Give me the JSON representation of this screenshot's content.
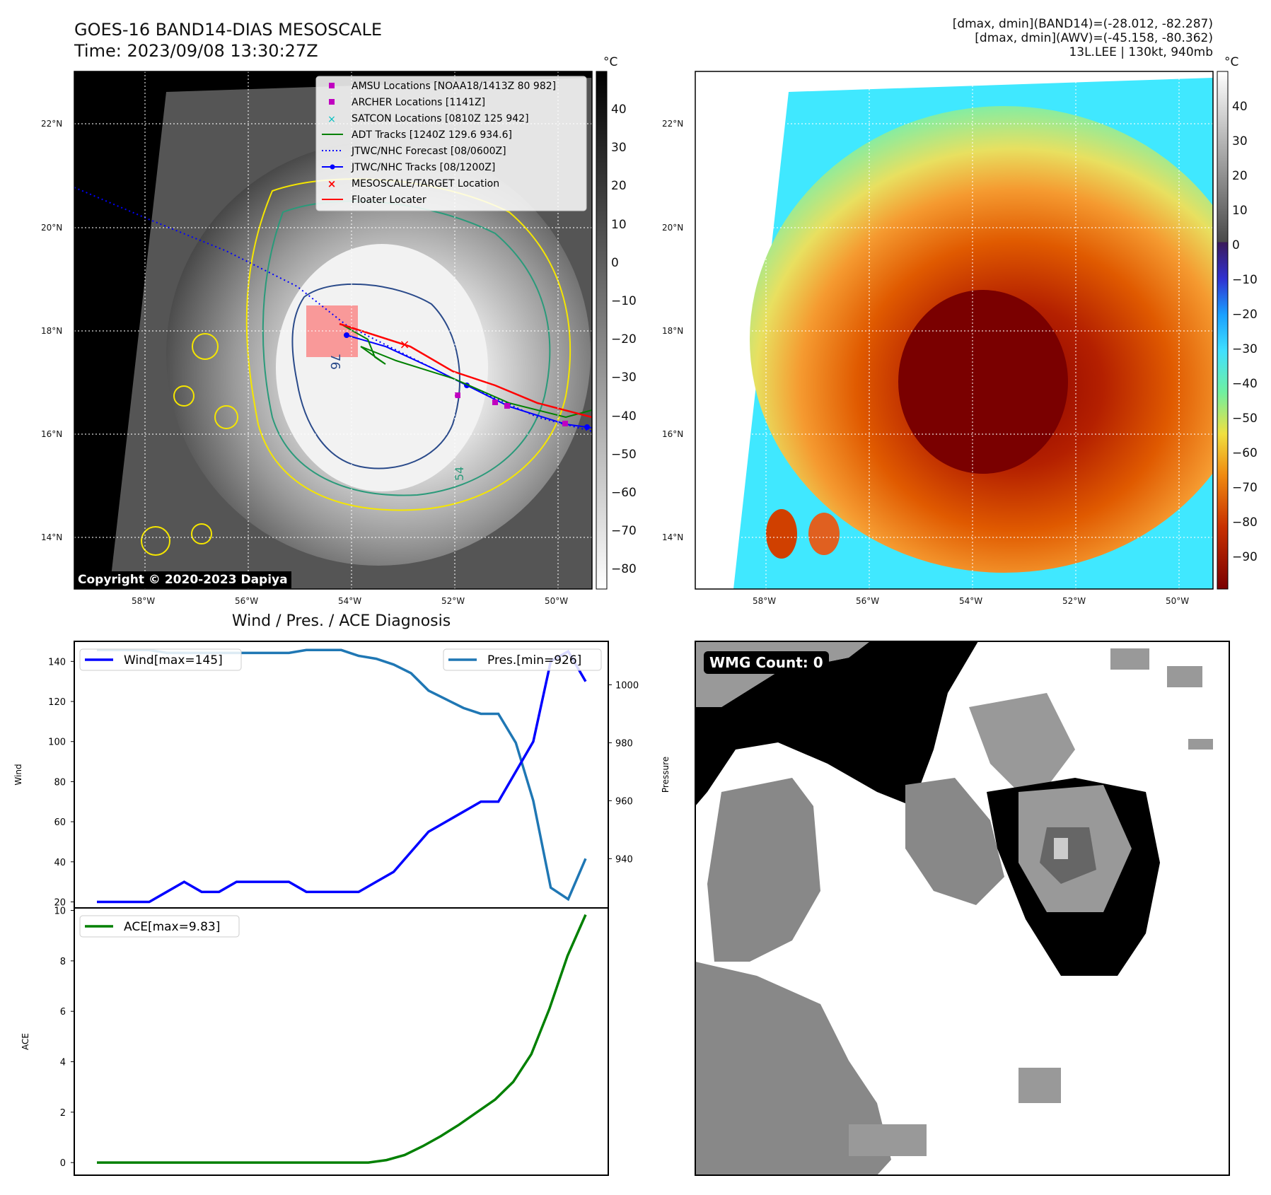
{
  "header": {
    "title_line1": "GOES-16 BAND14-DIAS MESOSCALE",
    "title_line2": "Time: 2023/09/08 13:30:27Z",
    "info_line1": "[dmax, dmin](BAND14)=(-28.012, -82.287)",
    "info_line2": "[dmax, dmin](AWV)=(-45.158, -80.362)",
    "info_line3": "13L.LEE | 130kt, 940mb"
  },
  "map": {
    "lat_labels": [
      "22°N",
      "20°N",
      "18°N",
      "16°N",
      "14°N"
    ],
    "lon_labels": [
      "58°W",
      "56°W",
      "54°W",
      "52°W",
      "50°W"
    ],
    "copyright": "Copyright © 2020-2023 Dapiya",
    "contour_labels": [
      "76",
      "54"
    ],
    "legend": [
      {
        "label": "AMSU Locations [NOAA18/1413Z 80 982]",
        "marker": "square",
        "color": "#c000c0"
      },
      {
        "label": "ARCHER Locations [1141Z]",
        "marker": "square",
        "color": "#c000c0"
      },
      {
        "label": "SATCON Locations [0810Z 125 942]",
        "marker": "x",
        "color": "#00c0c0"
      },
      {
        "label": "ADT Tracks [1240Z 129.6 934.6]",
        "marker": "line",
        "color": "#008000"
      },
      {
        "label": "JTWC/NHC Forecast [08/0600Z]",
        "marker": "dotted",
        "color": "#0000ff"
      },
      {
        "label": "JTWC/NHC Tracks [08/1200Z]",
        "marker": "line-dot",
        "color": "#0000ff"
      },
      {
        "label": "MESOSCALE/TARGET Location",
        "marker": "x",
        "color": "#ff0000"
      },
      {
        "label": "Floater Locater",
        "marker": "line",
        "color": "#ff0000"
      }
    ]
  },
  "colorbars": {
    "unit": "°C",
    "left_ticks": [
      "40",
      "30",
      "20",
      "10",
      "0",
      "−10",
      "−20",
      "−30",
      "−40",
      "−50",
      "−60",
      "−70",
      "−80"
    ],
    "right_ticks": [
      "40",
      "30",
      "20",
      "10",
      "0",
      "−10",
      "−20",
      "−30",
      "−40",
      "−50",
      "−60",
      "−70",
      "−80",
      "−90"
    ]
  },
  "diagnosis": {
    "title": "Wind / Pres. / ACE Diagnosis",
    "wind_ylabel": "Wind",
    "pres_ylabel": "Pressure",
    "ace_ylabel": "ACE",
    "wind_legend": "Wind[max=145]",
    "pres_legend": "Pres.[min=926]",
    "ace_legend": "ACE[max=9.83]",
    "colors": {
      "wind": "#0000ff",
      "pres": "#1f77b4",
      "ace": "#008000"
    }
  },
  "wmg": {
    "label": "WMG Count: 0"
  },
  "chart_data": [
    {
      "type": "line",
      "title": "Wind / Pres. / ACE Diagnosis",
      "ylabel": "Wind",
      "ylim": [
        17,
        150
      ],
      "yticks": [
        20,
        40,
        60,
        80,
        100,
        120,
        140
      ],
      "series": [
        {
          "name": "Wind[max=145]",
          "axis": "left",
          "values": [
            20,
            20,
            20,
            20,
            25,
            30,
            25,
            25,
            30,
            30,
            30,
            30,
            25,
            25,
            25,
            25,
            30,
            35,
            45,
            55,
            60,
            65,
            70,
            70,
            85,
            100,
            140,
            145,
            130
          ]
        },
        {
          "name": "Pres.[min=926]",
          "axis": "right",
          "values": [
            1012,
            1012,
            1012,
            1012,
            1011,
            1011,
            1011,
            1011,
            1011,
            1011,
            1011,
            1011,
            1012,
            1012,
            1012,
            1010,
            1009,
            1007,
            1004,
            998,
            995,
            992,
            990,
            990,
            980,
            960,
            930,
            926,
            940
          ]
        }
      ],
      "y2label": "Pressure",
      "y2lim": [
        923,
        1015
      ],
      "y2ticks": [
        940,
        960,
        980,
        1000
      ]
    },
    {
      "type": "line",
      "ylabel": "ACE",
      "ylim": [
        -0.5,
        10.1
      ],
      "yticks": [
        0,
        2,
        4,
        6,
        8,
        10
      ],
      "series": [
        {
          "name": "ACE[max=9.83]",
          "values": [
            0,
            0,
            0,
            0,
            0,
            0,
            0,
            0,
            0,
            0,
            0,
            0,
            0,
            0,
            0,
            0,
            0.1,
            0.3,
            0.65,
            1.05,
            1.5,
            2.0,
            2.5,
            3.2,
            4.3,
            6.1,
            8.2,
            9.83
          ]
        }
      ]
    }
  ]
}
